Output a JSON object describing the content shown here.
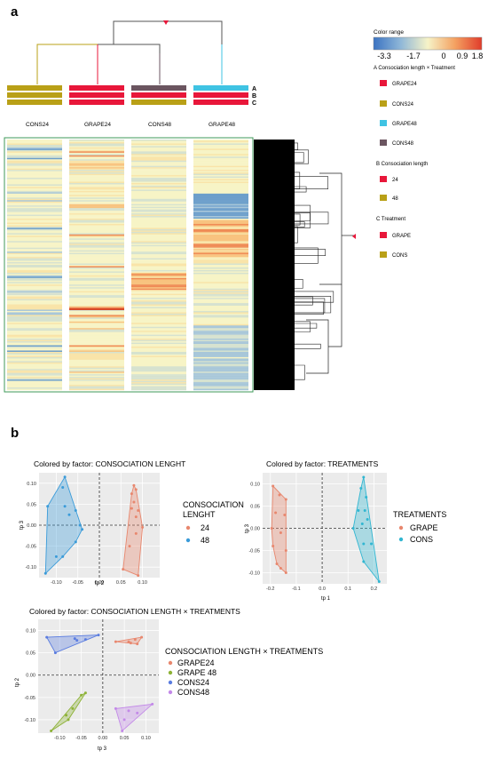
{
  "panel_a": {
    "label": "a",
    "column_labels": [
      "CONS24",
      "GRAPE24",
      "CONS48",
      "GRAPE48"
    ],
    "bar_row_labels": [
      "A",
      "B",
      "C"
    ],
    "color_range": {
      "title": "Color range",
      "ticks": [
        "-3.3",
        "-1.7",
        "0",
        "0.9",
        "1.8"
      ],
      "min": -3.3,
      "max": 1.8,
      "gradient": [
        "#3b73c2",
        "#8fb7d8",
        "#f6f3c8",
        "#f4a262",
        "#e03c2b"
      ]
    },
    "legend": [
      {
        "title": "A Consociation length × Treatment",
        "items": [
          {
            "label": "GRAPE24",
            "color": "#e8173a"
          },
          {
            "label": "CONS24",
            "color": "#b9a017"
          },
          {
            "label": "GRAPE48",
            "color": "#3fc3e3"
          },
          {
            "label": "CONS48",
            "color": "#6b5560"
          }
        ]
      },
      {
        "title": "B Consociation length",
        "items": [
          {
            "label": "24",
            "color": "#e8173a"
          },
          {
            "label": "48",
            "color": "#b9a017"
          }
        ]
      },
      {
        "title": "C Treatment",
        "items": [
          {
            "label": "GRAPE",
            "color": "#e8173a"
          },
          {
            "label": "CONS",
            "color": "#b9a017"
          }
        ]
      }
    ],
    "column_annotations": [
      [
        "#b9a017",
        "#b9a017",
        "#b9a017"
      ],
      [
        "#e8173a",
        "#e8173a",
        "#e8173a"
      ],
      [
        "#6b5560",
        "#e8173a",
        "#b9a017"
      ],
      [
        "#3fc3e3",
        "#e8173a",
        "#e8173a"
      ]
    ]
  },
  "panel_b": {
    "label": "b",
    "plots": [
      {
        "title": "Colored by factor: CONSOCIATION LENGHT",
        "xlabel": "tp 2",
        "ylabel": "tp 3",
        "xlim": [
          -0.14,
          0.14
        ],
        "ylim": [
          -0.125,
          0.125
        ],
        "xticks": [
          "-0.10",
          "-0.05",
          "0.00",
          "0.05",
          "0.10"
        ],
        "xtick_values": [
          -0.1,
          -0.05,
          0.0,
          0.05,
          0.1
        ],
        "yticks": [
          "0.10",
          "0.05",
          "0.00",
          "-0.05",
          "-0.10"
        ],
        "ytick_values": [
          0.1,
          0.05,
          0.0,
          -0.05,
          -0.1
        ],
        "legend_title": "CONSOCIATION LENGHT",
        "series": [
          {
            "name": "24",
            "color": "#e8876e",
            "points": [
              [
                0.08,
                0.095
              ],
              [
                0.085,
                0.085
              ],
              [
                0.075,
                0.075
              ],
              [
                0.08,
                0.055
              ],
              [
                0.075,
                0.04
              ],
              [
                0.09,
                0.035
              ],
              [
                0.085,
                0.02
              ],
              [
                0.1,
                -0.005
              ],
              [
                0.085,
                -0.02
              ],
              [
                0.07,
                -0.05
              ],
              [
                0.055,
                -0.105
              ],
              [
                0.09,
                -0.12
              ]
            ]
          },
          {
            "name": "48",
            "color": "#3a9bd9",
            "points": [
              [
                -0.08,
                0.115
              ],
              [
                -0.085,
                0.09
              ],
              [
                -0.12,
                0.045
              ],
              [
                -0.08,
                0.045
              ],
              [
                -0.055,
                0.035
              ],
              [
                -0.07,
                0.025
              ],
              [
                -0.045,
                0.0
              ],
              [
                -0.04,
                -0.01
              ],
              [
                -0.055,
                -0.04
              ],
              [
                -0.1,
                -0.075
              ],
              [
                -0.085,
                -0.075
              ],
              [
                -0.125,
                -0.115
              ]
            ]
          }
        ]
      },
      {
        "title": "Colored by factor: TREATMENTS",
        "xlabel": "tp 1",
        "ylabel": "tp 3",
        "xlim": [
          -0.23,
          0.25
        ],
        "ylim": [
          -0.125,
          0.125
        ],
        "xticks": [
          "-0.2",
          "-0.1",
          "0.0",
          "0.1",
          "0.2"
        ],
        "xtick_values": [
          -0.2,
          -0.1,
          0.0,
          0.1,
          0.2
        ],
        "yticks": [
          "0.10",
          "0.05",
          "0.00",
          "-0.05",
          "-0.10"
        ],
        "ytick_values": [
          0.1,
          0.05,
          0.0,
          -0.05,
          -0.1
        ],
        "legend_title": "TREATMENTS",
        "series": [
          {
            "name": "GRAPE",
            "color": "#e8876e",
            "points": [
              [
                -0.19,
                0.095
              ],
              [
                -0.165,
                0.075
              ],
              [
                -0.14,
                0.065
              ],
              [
                -0.18,
                0.035
              ],
              [
                -0.145,
                0.03
              ],
              [
                -0.195,
                0.0
              ],
              [
                -0.16,
                -0.01
              ],
              [
                -0.19,
                -0.04
              ],
              [
                -0.14,
                -0.05
              ],
              [
                -0.175,
                -0.08
              ],
              [
                -0.16,
                -0.09
              ],
              [
                -0.14,
                -0.1
              ]
            ]
          },
          {
            "name": "CONS",
            "color": "#31b6d1",
            "points": [
              [
                0.16,
                0.115
              ],
              [
                0.15,
                0.09
              ],
              [
                0.17,
                0.07
              ],
              [
                0.14,
                0.04
              ],
              [
                0.165,
                0.04
              ],
              [
                0.175,
                0.02
              ],
              [
                0.155,
                0.01
              ],
              [
                0.12,
                0.0
              ],
              [
                0.16,
                -0.035
              ],
              [
                0.19,
                -0.035
              ],
              [
                0.16,
                -0.075
              ],
              [
                0.22,
                -0.12
              ]
            ]
          }
        ]
      },
      {
        "title": "Colored by factor: CONSOCIATION LENGTH × TREATMENTS",
        "xlabel": "tp 3",
        "ylabel": "tp 2",
        "xlim": [
          -0.15,
          0.13
        ],
        "ylim": [
          -0.13,
          0.125
        ],
        "xticks": [
          "-0.10",
          "-0.05",
          "0.00",
          "0.05",
          "0.10"
        ],
        "xtick_values": [
          -0.1,
          -0.05,
          0.0,
          0.05,
          0.1
        ],
        "yticks": [
          "0.10",
          "0.05",
          "0.00",
          "-0.05",
          "-0.10"
        ],
        "ytick_values": [
          0.1,
          0.05,
          0.0,
          -0.05,
          -0.1
        ],
        "legend_title": "CONSOCIATION LENGTH × TREATMENTS",
        "series": [
          {
            "name": "GRAPE24",
            "color": "#e8876e",
            "points": [
              [
                0.03,
                0.075
              ],
              [
                0.06,
                0.075
              ],
              [
                0.075,
                0.08
              ],
              [
                0.09,
                0.085
              ],
              [
                0.08,
                0.07
              ],
              [
                0.065,
                0.072
              ]
            ]
          },
          {
            "name": "GRAPE 48",
            "color": "#8db236",
            "points": [
              [
                -0.04,
                -0.04
              ],
              [
                -0.07,
                -0.075
              ],
              [
                -0.085,
                -0.09
              ],
              [
                -0.08,
                -0.1
              ],
              [
                -0.12,
                -0.125
              ],
              [
                -0.05,
                -0.045
              ]
            ]
          },
          {
            "name": "CONS24",
            "color": "#5b7de0",
            "points": [
              [
                -0.13,
                0.085
              ],
              [
                -0.065,
                0.082
              ],
              [
                -0.06,
                0.078
              ],
              [
                -0.04,
                0.08
              ],
              [
                -0.01,
                0.09
              ],
              [
                -0.11,
                0.05
              ]
            ]
          },
          {
            "name": "CONS48",
            "color": "#c389e8",
            "points": [
              [
                0.03,
                -0.075
              ],
              [
                0.06,
                -0.08
              ],
              [
                0.08,
                -0.085
              ],
              [
                0.115,
                -0.065
              ],
              [
                0.05,
                -0.1
              ],
              [
                0.045,
                -0.125
              ]
            ]
          }
        ]
      }
    ]
  },
  "chart_data": [
    {
      "type": "heatmap",
      "columns": [
        "CONS24",
        "GRAPE24",
        "CONS48",
        "GRAPE48"
      ],
      "color_range": [
        -3.3,
        1.8
      ],
      "color_ticks": [
        "-3.3",
        "-1.7",
        "0",
        "0.9",
        "1.8"
      ]
    },
    {
      "type": "scatter",
      "title": "Colored by factor: CONSOCIATION LENGHT",
      "xlabel": "tp 2",
      "ylabel": "tp 3",
      "series": [
        {
          "name": "24"
        },
        {
          "name": "48"
        }
      ]
    },
    {
      "type": "scatter",
      "title": "Colored by factor: TREATMENTS",
      "xlabel": "tp 1",
      "ylabel": "tp 3",
      "series": [
        {
          "name": "GRAPE"
        },
        {
          "name": "CONS"
        }
      ]
    },
    {
      "type": "scatter",
      "title": "Colored by factor: CONSOCIATION LENGTH × TREATMENTS",
      "xlabel": "tp 3",
      "ylabel": "tp 2",
      "series": [
        {
          "name": "GRAPE24"
        },
        {
          "name": "GRAPE 48"
        },
        {
          "name": "CONS24"
        },
        {
          "name": "CONS48"
        }
      ]
    }
  ]
}
